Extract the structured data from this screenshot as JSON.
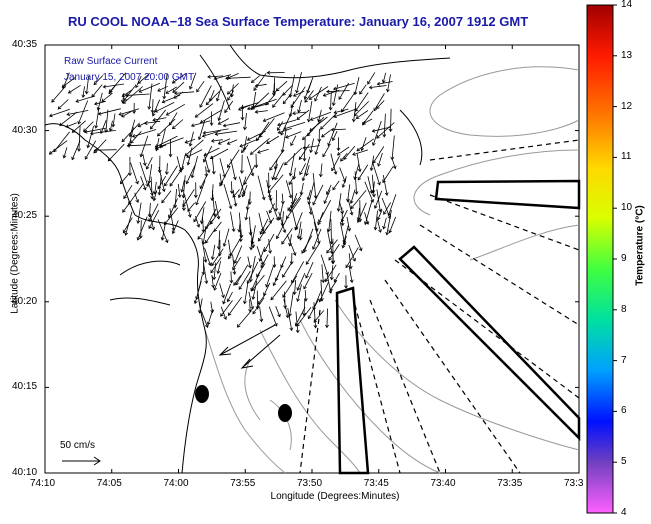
{
  "title": "RU COOL  NOAA−18  Sea Surface Temperature:  January 16, 2007 1912 GMT",
  "overlay": {
    "line1": "Raw Surface Current",
    "line2": "January 15, 2007 20:00 GMT"
  },
  "axes": {
    "xlabel": "Longitude (Degrees:Minutes)",
    "ylabel": "Latitude (Degrees:Minutes)",
    "xticks": [
      "74:10",
      "74:05",
      "74:00",
      "73:55",
      "73:50",
      "73:45",
      "73:40",
      "73:35",
      "73:3"
    ],
    "yticks": [
      "40:35",
      "40:30",
      "40:25",
      "40:20",
      "40:15",
      "40:10"
    ]
  },
  "colorbar": {
    "label": "Temperature (°C)",
    "ticks": [
      "14",
      "13",
      "12",
      "11",
      "10",
      "9",
      "8",
      "7",
      "6",
      "5",
      "4"
    ],
    "colors": [
      "#b00000",
      "#ff2000",
      "#ff8000",
      "#ffd000",
      "#e0ff00",
      "#40ff40",
      "#00e0b0",
      "#00b0ff",
      "#0030ff",
      "#6040c0",
      "#ff50ff"
    ]
  },
  "scale_label": "50 cm/s",
  "chart_data": {
    "type": "map",
    "xlim": [
      "74:10",
      "73:30"
    ],
    "ylim": [
      "40:10",
      "40:35"
    ],
    "color_range": [
      4,
      14
    ]
  }
}
